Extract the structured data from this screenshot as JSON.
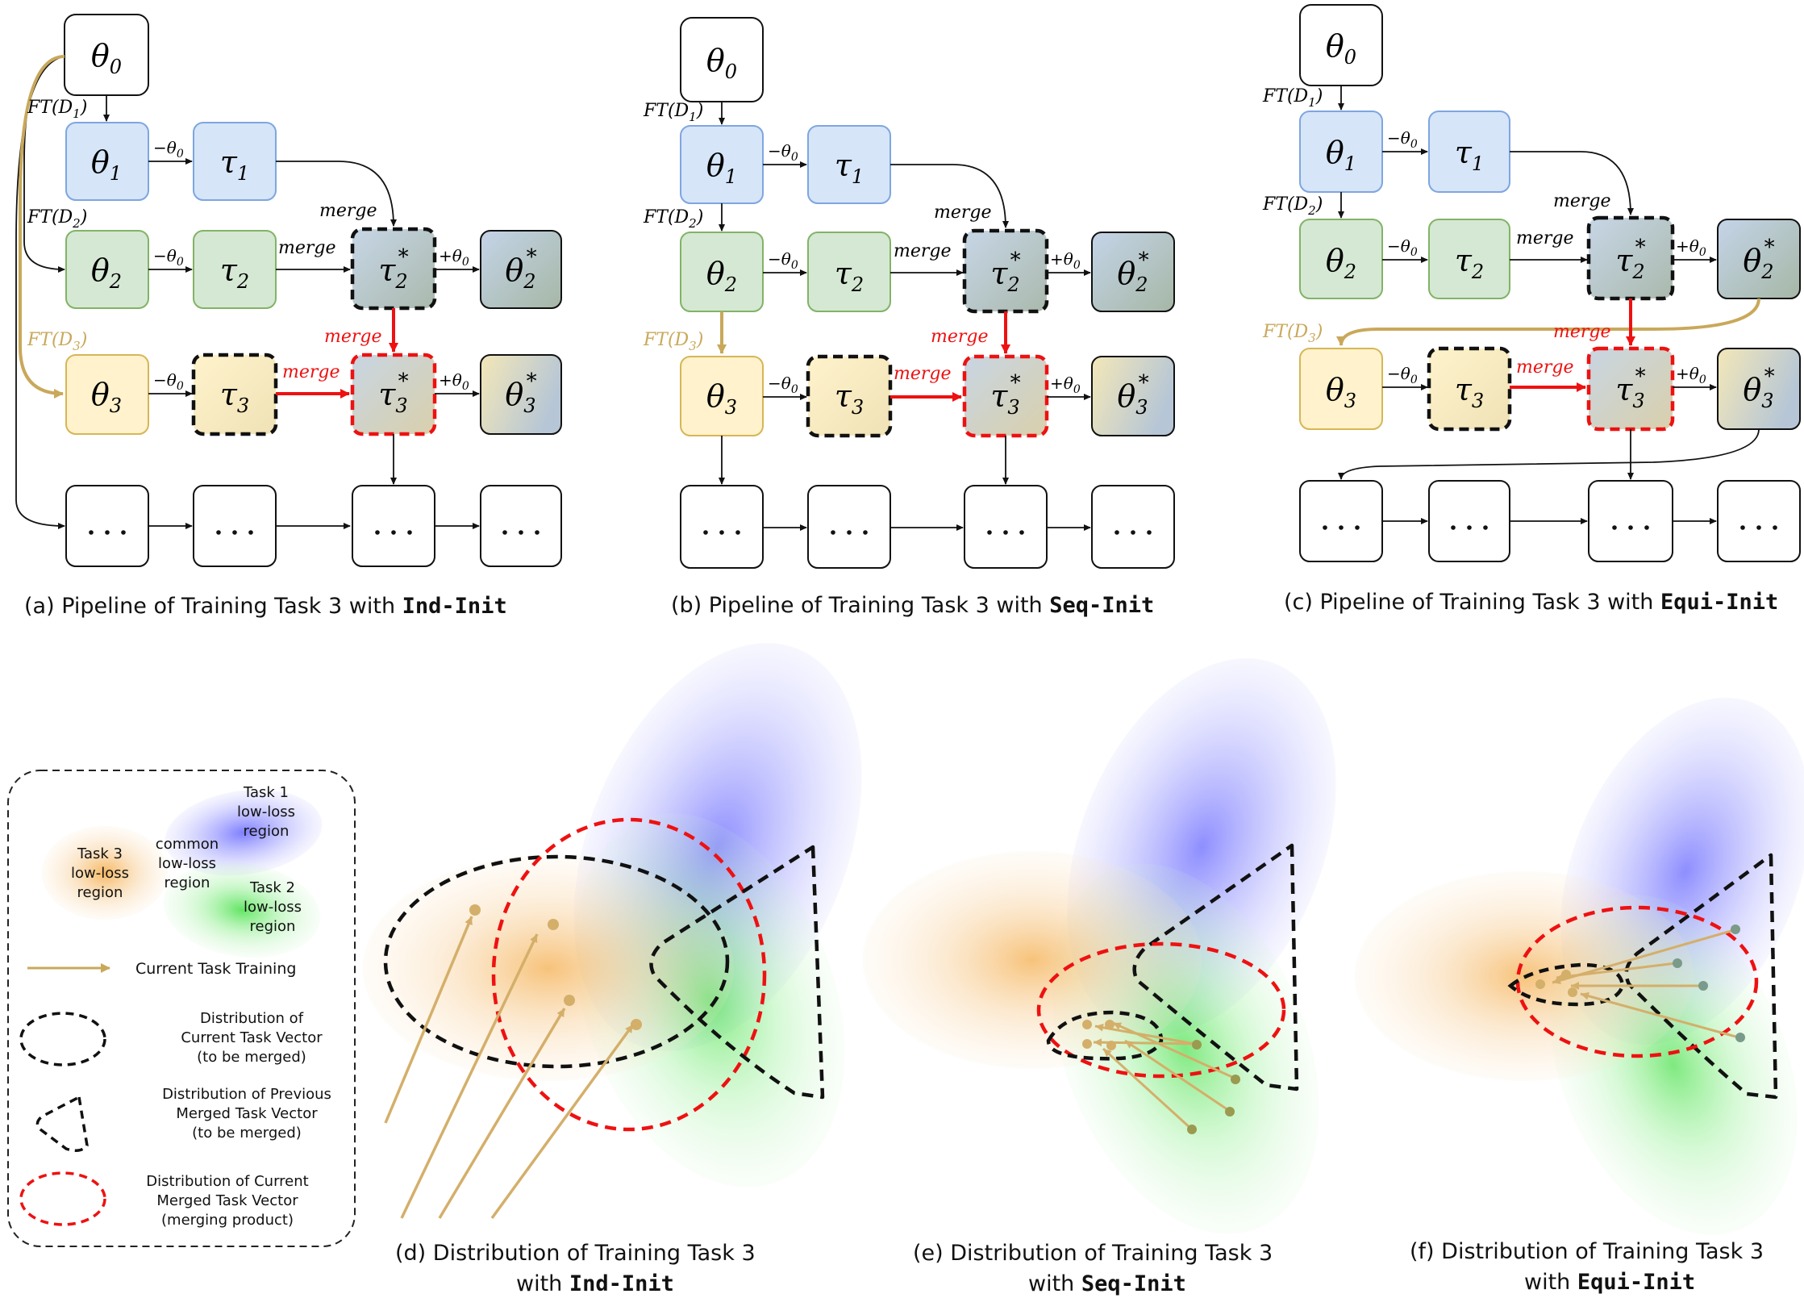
{
  "colors": {
    "blue_fill": "#d6e5f8",
    "blue_stroke": "#7ea6e0",
    "green_fill": "#d5e8d4",
    "green_stroke": "#82b366",
    "yellow_fill": "#fff2cc",
    "yellow_stroke": "#d6b656",
    "merged_fill": "#b9c8d0",
    "gold_arrow": "#c9a85a",
    "red": "#ee1111",
    "black": "#111111"
  },
  "symbols": {
    "theta0": "θ",
    "theta0_sub": "0",
    "theta1": "θ",
    "theta1_sub": "1",
    "theta2": "θ",
    "theta2_sub": "2",
    "theta3": "θ",
    "theta3_sub": "3",
    "tau1": "τ",
    "tau1_sub": "1",
    "tau2": "τ",
    "tau2_sub": "2",
    "tau3": "τ",
    "tau3_sub": "3",
    "tau2s": "τ",
    "tau2s_sub": "2",
    "tau2s_sup": "*",
    "tau3s": "τ",
    "tau3s_sub": "3",
    "tau3s_sup": "*",
    "theta2s": "θ",
    "theta2s_sub": "2",
    "theta2s_sup": "*",
    "theta3s": "θ",
    "theta3s_sub": "3",
    "theta3s_sup": "*",
    "ellipsis": "· · ·"
  },
  "edge_labels": {
    "ft1": "FT(D",
    "ft1_sub": "1",
    "ft1_end": ")",
    "ft2": "FT(D",
    "ft2_sub": "2",
    "ft2_end": ")",
    "ft3": "FT(D",
    "ft3_sub": "3",
    "ft3_end": ")",
    "minus_theta0": "−θ",
    "minus_theta0_sub": "0",
    "plus_theta0": "+θ",
    "plus_theta0_sub": "0",
    "merge": "merge"
  },
  "captions": {
    "a": "(a) Pipeline of Training Task 3 with ",
    "a_bold": "Ind-Init",
    "b": "(b) Pipeline of Training Task 3 with ",
    "b_bold": "Seq-Init",
    "c": "(c) Pipeline of Training Task 3 with ",
    "c_bold": "Equi-Init",
    "d_line1": "(d) Distribution of Training Task 3",
    "d_line2": "with ",
    "d_bold": "Ind-Init",
    "e_line1": "(e) Distribution of Training Task 3",
    "e_line2": "with ",
    "e_bold": "Seq-Init",
    "f_line1": "(f) Distribution of Training Task 3",
    "f_line2": "with ",
    "f_bold": "Equi-Init"
  },
  "legend": {
    "task1": [
      "Task 1",
      "low-loss",
      "region"
    ],
    "task2": [
      "Task 2",
      "low-loss",
      "region"
    ],
    "task3": [
      "Task 3",
      "low-loss",
      "region"
    ],
    "common": [
      "common",
      "low-loss",
      "region"
    ],
    "training": "Current Task Training",
    "cur_vec": [
      "Distribution of",
      "Current Task Vector",
      "(to be merged)"
    ],
    "prev_vec": [
      "Distribution of Previous",
      "Merged Task Vector",
      "(to be merged)"
    ],
    "merged_vec": [
      "Distribution of Current",
      "Merged Task Vector",
      "(merging product)"
    ]
  }
}
